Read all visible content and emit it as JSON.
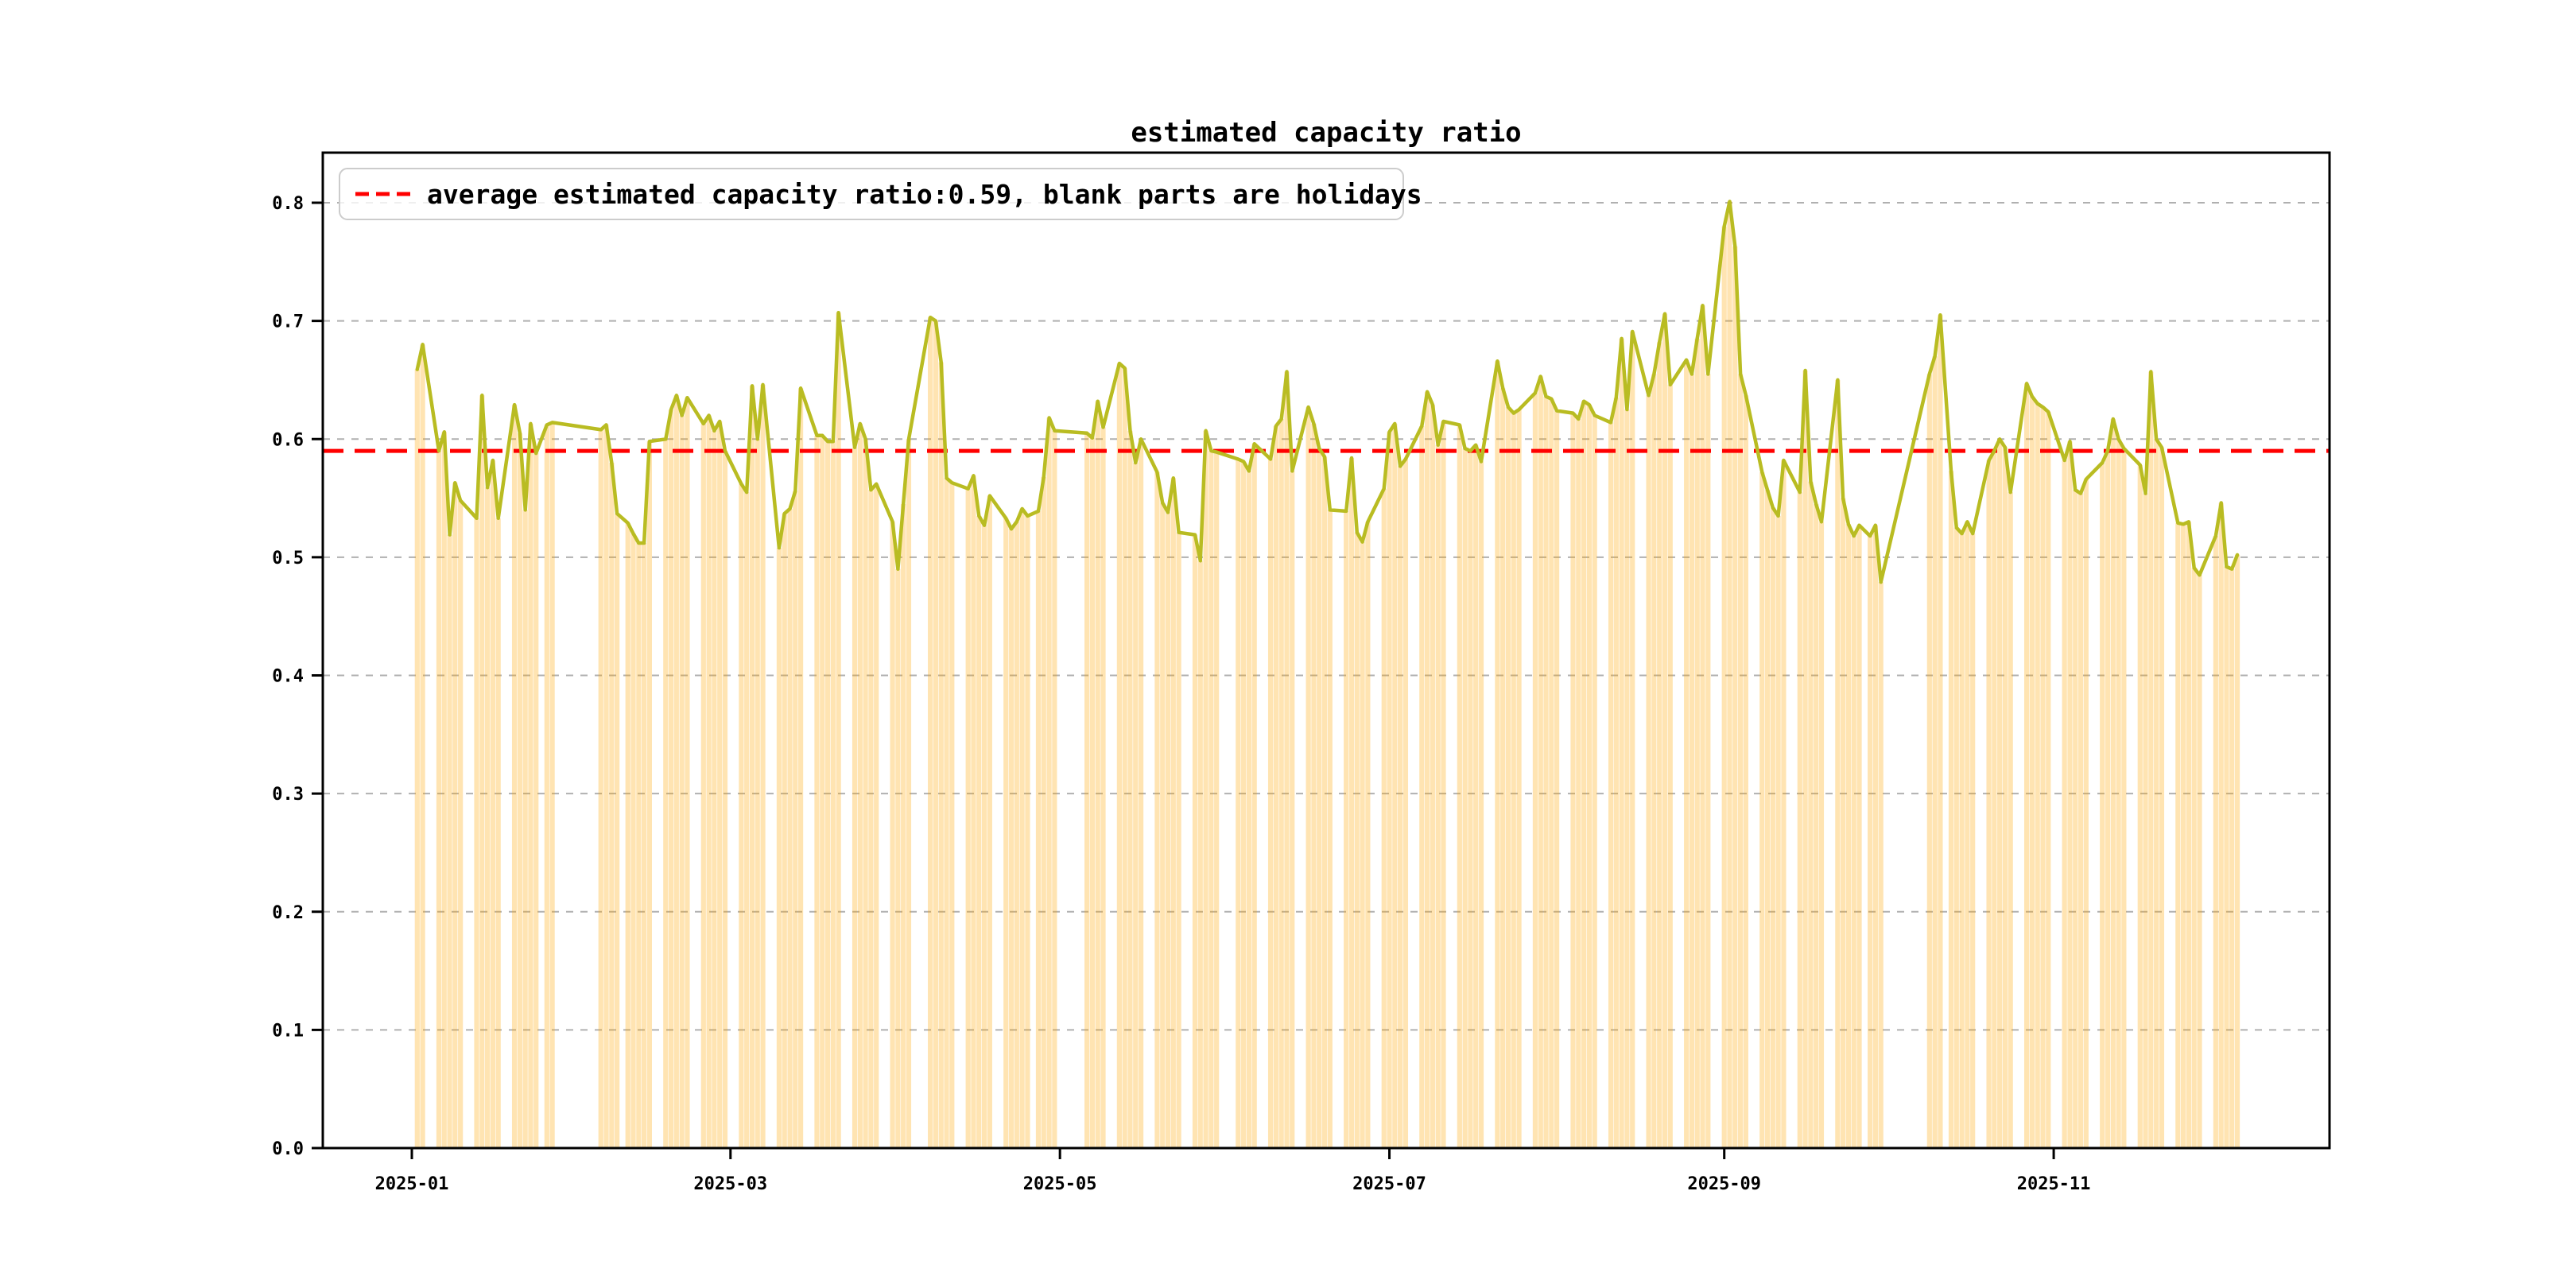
{
  "title": "estimated capacity ratio",
  "legend": {
    "label": "average estimated capacity ratio:0.59, blank parts are holidays",
    "marker": "red-dashed-line"
  },
  "colors": {
    "line": "#b9bc22",
    "bar": "#ffa500",
    "bar_alpha": 0.3,
    "average_line": "#ff0000",
    "grid": "#b0b0b0",
    "axis": "#000000",
    "legend_border": "#cccccc",
    "background": "#ffffff"
  },
  "chart_data": {
    "type": "bar+line",
    "title": "estimated capacity ratio",
    "xlabel": "",
    "ylabel": "",
    "ylim": [
      0.0,
      0.842
    ],
    "grid": "dashed-horizontal",
    "legend_position": "upper-left",
    "average_value": 0.59,
    "average_note": "blank parts are holidays",
    "y_ticks": [
      "0.0",
      "0.1",
      "0.2",
      "0.3",
      "0.4",
      "0.5",
      "0.6",
      "0.7",
      "0.8"
    ],
    "x_ticks": [
      {
        "label": "2025-01",
        "date": "2025-01-01"
      },
      {
        "label": "2025-03",
        "date": "2025-03-01"
      },
      {
        "label": "2025-05",
        "date": "2025-05-01"
      },
      {
        "label": "2025-07",
        "date": "2025-07-01"
      },
      {
        "label": "2025-09",
        "date": "2025-09-01"
      },
      {
        "label": "2025-11",
        "date": "2025-11-01"
      }
    ],
    "series": [
      {
        "name": "estimated capacity ratio",
        "points": [
          [
            "2025-01-02",
            0.659
          ],
          [
            "2025-01-03",
            0.68
          ],
          [
            "2025-01-06",
            0.59
          ],
          [
            "2025-01-07",
            0.606
          ],
          [
            "2025-01-08",
            0.519
          ],
          [
            "2025-01-09",
            0.563
          ],
          [
            "2025-01-10",
            0.548
          ],
          [
            "2025-01-13",
            0.533
          ],
          [
            "2025-01-14",
            0.637
          ],
          [
            "2025-01-15",
            0.559
          ],
          [
            "2025-01-16",
            0.582
          ],
          [
            "2025-01-17",
            0.533
          ],
          [
            "2025-01-20",
            0.629
          ],
          [
            "2025-01-21",
            0.605
          ],
          [
            "2025-01-22",
            0.54
          ],
          [
            "2025-01-23",
            0.613
          ],
          [
            "2025-01-24",
            0.588
          ],
          [
            "2025-01-26",
            0.612
          ],
          [
            "2025-01-27",
            0.614
          ],
          [
            "2025-02-05",
            0.608
          ],
          [
            "2025-02-06",
            0.612
          ],
          [
            "2025-02-07",
            0.58
          ],
          [
            "2025-02-08",
            0.537
          ],
          [
            "2025-02-10",
            0.529
          ],
          [
            "2025-02-11",
            0.52
          ],
          [
            "2025-02-12",
            0.512
          ],
          [
            "2025-02-13",
            0.512
          ],
          [
            "2025-02-14",
            0.598
          ],
          [
            "2025-02-17",
            0.6
          ],
          [
            "2025-02-18",
            0.625
          ],
          [
            "2025-02-19",
            0.637
          ],
          [
            "2025-02-20",
            0.62
          ],
          [
            "2025-02-21",
            0.635
          ],
          [
            "2025-02-24",
            0.613
          ],
          [
            "2025-02-25",
            0.62
          ],
          [
            "2025-02-26",
            0.607
          ],
          [
            "2025-02-27",
            0.615
          ],
          [
            "2025-02-28",
            0.59
          ],
          [
            "2025-03-03",
            0.562
          ],
          [
            "2025-03-04",
            0.555
          ],
          [
            "2025-03-05",
            0.645
          ],
          [
            "2025-03-06",
            0.6
          ],
          [
            "2025-03-07",
            0.646
          ],
          [
            "2025-03-10",
            0.508
          ],
          [
            "2025-03-11",
            0.537
          ],
          [
            "2025-03-12",
            0.541
          ],
          [
            "2025-03-13",
            0.556
          ],
          [
            "2025-03-14",
            0.643
          ],
          [
            "2025-03-17",
            0.603
          ],
          [
            "2025-03-18",
            0.603
          ],
          [
            "2025-03-19",
            0.598
          ],
          [
            "2025-03-20",
            0.598
          ],
          [
            "2025-03-21",
            0.707
          ],
          [
            "2025-03-24",
            0.593
          ],
          [
            "2025-03-25",
            0.613
          ],
          [
            "2025-03-26",
            0.6
          ],
          [
            "2025-03-27",
            0.557
          ],
          [
            "2025-03-28",
            0.562
          ],
          [
            "2025-03-31",
            0.53
          ],
          [
            "2025-04-01",
            0.49
          ],
          [
            "2025-04-02",
            0.545
          ],
          [
            "2025-04-03",
            0.6
          ],
          [
            "2025-04-07",
            0.703
          ],
          [
            "2025-04-08",
            0.7
          ],
          [
            "2025-04-09",
            0.665
          ],
          [
            "2025-04-10",
            0.567
          ],
          [
            "2025-04-11",
            0.563
          ],
          [
            "2025-04-14",
            0.558
          ],
          [
            "2025-04-15",
            0.569
          ],
          [
            "2025-04-16",
            0.535
          ],
          [
            "2025-04-17",
            0.527
          ],
          [
            "2025-04-18",
            0.552
          ],
          [
            "2025-04-21",
            0.533
          ],
          [
            "2025-04-22",
            0.524
          ],
          [
            "2025-04-23",
            0.53
          ],
          [
            "2025-04-24",
            0.541
          ],
          [
            "2025-04-25",
            0.535
          ],
          [
            "2025-04-27",
            0.539
          ],
          [
            "2025-04-28",
            0.568
          ],
          [
            "2025-04-29",
            0.618
          ],
          [
            "2025-04-30",
            0.607
          ],
          [
            "2025-05-06",
            0.605
          ],
          [
            "2025-05-07",
            0.601
          ],
          [
            "2025-05-08",
            0.632
          ],
          [
            "2025-05-09",
            0.61
          ],
          [
            "2025-05-12",
            0.664
          ],
          [
            "2025-05-13",
            0.66
          ],
          [
            "2025-05-14",
            0.607
          ],
          [
            "2025-05-15",
            0.58
          ],
          [
            "2025-05-16",
            0.6
          ],
          [
            "2025-05-19",
            0.572
          ],
          [
            "2025-05-20",
            0.546
          ],
          [
            "2025-05-21",
            0.538
          ],
          [
            "2025-05-22",
            0.567
          ],
          [
            "2025-05-23",
            0.521
          ],
          [
            "2025-05-26",
            0.519
          ],
          [
            "2025-05-27",
            0.497
          ],
          [
            "2025-05-28",
            0.607
          ],
          [
            "2025-05-29",
            0.59
          ],
          [
            "2025-05-30",
            0.589
          ],
          [
            "2025-06-03",
            0.583
          ],
          [
            "2025-06-04",
            0.581
          ],
          [
            "2025-06-05",
            0.573
          ],
          [
            "2025-06-06",
            0.596
          ],
          [
            "2025-06-09",
            0.583
          ],
          [
            "2025-06-10",
            0.611
          ],
          [
            "2025-06-11",
            0.617
          ],
          [
            "2025-06-12",
            0.657
          ],
          [
            "2025-06-13",
            0.573
          ],
          [
            "2025-06-16",
            0.627
          ],
          [
            "2025-06-17",
            0.613
          ],
          [
            "2025-06-18",
            0.592
          ],
          [
            "2025-06-19",
            0.585
          ],
          [
            "2025-06-20",
            0.54
          ],
          [
            "2025-06-23",
            0.539
          ],
          [
            "2025-06-24",
            0.584
          ],
          [
            "2025-06-25",
            0.521
          ],
          [
            "2025-06-26",
            0.513
          ],
          [
            "2025-06-27",
            0.53
          ],
          [
            "2025-06-30",
            0.558
          ],
          [
            "2025-07-01",
            0.606
          ],
          [
            "2025-07-02",
            0.613
          ],
          [
            "2025-07-03",
            0.577
          ],
          [
            "2025-07-04",
            0.583
          ],
          [
            "2025-07-07",
            0.611
          ],
          [
            "2025-07-08",
            0.64
          ],
          [
            "2025-07-09",
            0.629
          ],
          [
            "2025-07-10",
            0.595
          ],
          [
            "2025-07-11",
            0.615
          ],
          [
            "2025-07-14",
            0.612
          ],
          [
            "2025-07-15",
            0.592
          ],
          [
            "2025-07-16",
            0.59
          ],
          [
            "2025-07-17",
            0.595
          ],
          [
            "2025-07-18",
            0.581
          ],
          [
            "2025-07-21",
            0.666
          ],
          [
            "2025-07-22",
            0.643
          ],
          [
            "2025-07-23",
            0.627
          ],
          [
            "2025-07-24",
            0.622
          ],
          [
            "2025-07-25",
            0.625
          ],
          [
            "2025-07-28",
            0.639
          ],
          [
            "2025-07-29",
            0.653
          ],
          [
            "2025-07-30",
            0.636
          ],
          [
            "2025-07-31",
            0.634
          ],
          [
            "2025-08-01",
            0.624
          ],
          [
            "2025-08-04",
            0.622
          ],
          [
            "2025-08-05",
            0.617
          ],
          [
            "2025-08-06",
            0.632
          ],
          [
            "2025-08-07",
            0.629
          ],
          [
            "2025-08-08",
            0.62
          ],
          [
            "2025-08-11",
            0.614
          ],
          [
            "2025-08-12",
            0.635
          ],
          [
            "2025-08-13",
            0.685
          ],
          [
            "2025-08-14",
            0.625
          ],
          [
            "2025-08-15",
            0.691
          ],
          [
            "2025-08-18",
            0.637
          ],
          [
            "2025-08-19",
            0.655
          ],
          [
            "2025-08-20",
            0.682
          ],
          [
            "2025-08-21",
            0.706
          ],
          [
            "2025-08-22",
            0.646
          ],
          [
            "2025-08-25",
            0.667
          ],
          [
            "2025-08-26",
            0.655
          ],
          [
            "2025-08-27",
            0.685
          ],
          [
            "2025-08-28",
            0.713
          ],
          [
            "2025-08-29",
            0.655
          ],
          [
            "2025-09-01",
            0.78
          ],
          [
            "2025-09-02",
            0.801
          ],
          [
            "2025-09-03",
            0.763
          ],
          [
            "2025-09-04",
            0.655
          ],
          [
            "2025-09-05",
            0.637
          ],
          [
            "2025-09-08",
            0.572
          ],
          [
            "2025-09-09",
            0.557
          ],
          [
            "2025-09-10",
            0.542
          ],
          [
            "2025-09-11",
            0.535
          ],
          [
            "2025-09-12",
            0.582
          ],
          [
            "2025-09-15",
            0.555
          ],
          [
            "2025-09-16",
            0.658
          ],
          [
            "2025-09-17",
            0.564
          ],
          [
            "2025-09-18",
            0.545
          ],
          [
            "2025-09-19",
            0.53
          ],
          [
            "2025-09-22",
            0.65
          ],
          [
            "2025-09-23",
            0.55
          ],
          [
            "2025-09-24",
            0.528
          ],
          [
            "2025-09-25",
            0.518
          ],
          [
            "2025-09-26",
            0.527
          ],
          [
            "2025-09-28",
            0.518
          ],
          [
            "2025-09-29",
            0.527
          ],
          [
            "2025-09-30",
            0.479
          ],
          [
            "2025-10-09",
            0.655
          ],
          [
            "2025-10-10",
            0.67
          ],
          [
            "2025-10-11",
            0.705
          ],
          [
            "2025-10-13",
            0.573
          ],
          [
            "2025-10-14",
            0.525
          ],
          [
            "2025-10-15",
            0.52
          ],
          [
            "2025-10-16",
            0.53
          ],
          [
            "2025-10-17",
            0.52
          ],
          [
            "2025-10-20",
            0.582
          ],
          [
            "2025-10-21",
            0.59
          ],
          [
            "2025-10-22",
            0.6
          ],
          [
            "2025-10-23",
            0.593
          ],
          [
            "2025-10-24",
            0.555
          ],
          [
            "2025-10-27",
            0.647
          ],
          [
            "2025-10-28",
            0.636
          ],
          [
            "2025-10-29",
            0.63
          ],
          [
            "2025-10-30",
            0.627
          ],
          [
            "2025-10-31",
            0.623
          ],
          [
            "2025-11-03",
            0.582
          ],
          [
            "2025-11-04",
            0.598
          ],
          [
            "2025-11-05",
            0.557
          ],
          [
            "2025-11-06",
            0.554
          ],
          [
            "2025-11-07",
            0.566
          ],
          [
            "2025-11-10",
            0.58
          ],
          [
            "2025-11-11",
            0.59
          ],
          [
            "2025-11-12",
            0.617
          ],
          [
            "2025-11-13",
            0.6
          ],
          [
            "2025-11-14",
            0.592
          ],
          [
            "2025-11-17",
            0.578
          ],
          [
            "2025-11-18",
            0.554
          ],
          [
            "2025-11-19",
            0.657
          ],
          [
            "2025-11-20",
            0.6
          ],
          [
            "2025-11-21",
            0.593
          ],
          [
            "2025-11-24",
            0.529
          ],
          [
            "2025-11-25",
            0.528
          ],
          [
            "2025-11-26",
            0.53
          ],
          [
            "2025-11-27",
            0.491
          ],
          [
            "2025-11-28",
            0.485
          ],
          [
            "2025-12-01",
            0.518
          ],
          [
            "2025-12-02",
            0.546
          ],
          [
            "2025-12-03",
            0.492
          ],
          [
            "2025-12-04",
            0.49
          ],
          [
            "2025-12-05",
            0.502
          ]
        ]
      }
    ]
  }
}
